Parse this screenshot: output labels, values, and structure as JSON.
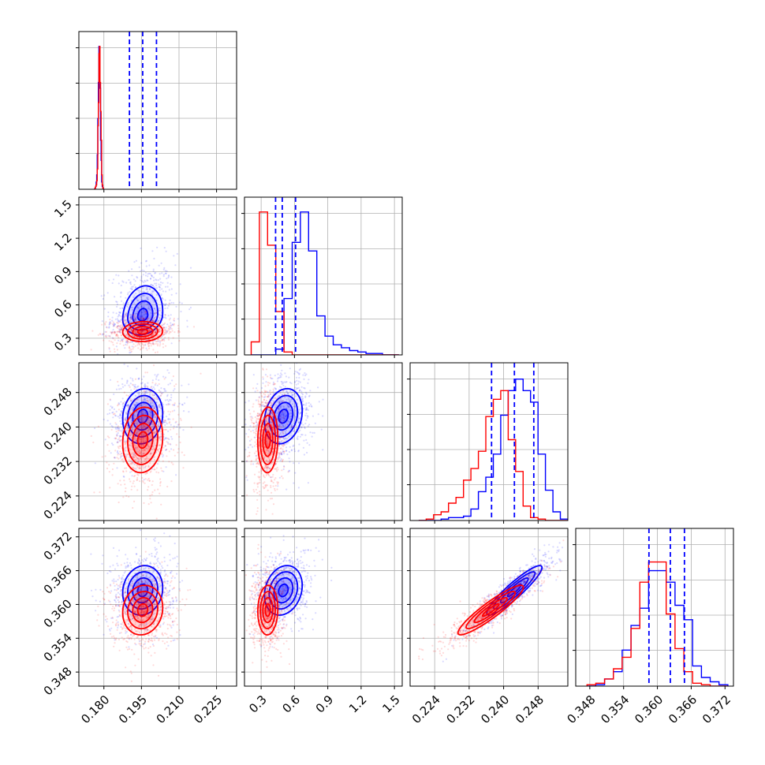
{
  "chart_data": {
    "type": "corner",
    "title": "",
    "n_params": 4,
    "params": [
      {
        "range": [
          0.17,
          0.233
        ],
        "ticks": [
          0.18,
          0.195,
          0.21,
          0.225
        ],
        "tick_labels": [
          "0.180",
          "0.195",
          "0.210",
          "0.225"
        ],
        "grid": true
      },
      {
        "range": [
          0.15,
          1.57
        ],
        "ticks": [
          0.3,
          0.6,
          0.9,
          1.2,
          1.5
        ],
        "tick_labels": [
          "0.3",
          "0.6",
          "0.9",
          "1.2",
          "1.5"
        ],
        "grid": true
      },
      {
        "range": [
          0.2183,
          0.2549
        ],
        "ticks": [
          0.224,
          0.232,
          0.24,
          0.248
        ],
        "tick_labels": [
          "0.224",
          "0.232",
          "0.240",
          "0.248"
        ],
        "grid": true
      },
      {
        "range": [
          0.3455,
          0.3735
        ],
        "ticks": [
          0.348,
          0.354,
          0.36,
          0.366,
          0.372
        ],
        "tick_labels": [
          "0.348",
          "0.354",
          "0.360",
          "0.366",
          "0.372"
        ],
        "grid": true
      }
    ],
    "series": [
      {
        "name": "",
        "color": "#0000ff",
        "mean": [
          0.1955,
          0.5,
          0.2425,
          0.3625
        ],
        "std": [
          0.004,
          0.085,
          0.0032,
          0.0022
        ],
        "corr": [
          [
            1,
            0.15,
            0.1,
            0.1
          ],
          [
            0.15,
            1,
            0.2,
            0.2
          ],
          [
            0.1,
            0.2,
            1,
            0.92
          ],
          [
            0.1,
            0.2,
            0.92,
            1
          ]
        ],
        "quantiles": [
          [
            0.1902,
            0.1955,
            0.201
          ],
          [
            0.43,
            0.49,
            0.61
          ],
          [
            0.2372,
            0.2425,
            0.247
          ],
          [
            0.3585,
            0.3623,
            0.3648
          ]
        ]
      },
      {
        "name": "",
        "color": "#ff0000",
        "mean": [
          0.1955,
          0.36,
          0.237,
          0.359
        ],
        "std": [
          0.004,
          0.045,
          0.0038,
          0.0022
        ],
        "corr": [
          [
            1,
            0.05,
            0.1,
            0.1
          ],
          [
            0.05,
            1,
            0.05,
            0.05
          ],
          [
            0.1,
            0.05,
            1,
            0.92
          ],
          [
            0.1,
            0.05,
            0.92,
            1
          ]
        ]
      }
    ],
    "diag_hist": {
      "blue": [
        [
          0.18,
          0.176,
          0.0,
          0.01,
          0.02,
          0.05,
          0.2,
          0.34,
          0.7,
          0.8,
          0.99,
          0.74,
          0.49,
          0.24,
          0.1,
          0.05,
          0.02,
          0.01,
          0.0,
          0.0
        ],
        [
          0.21,
          1.54,
          0.0,
          0.0,
          0.0,
          0.04,
          0.39,
          0.78,
          0.99,
          0.72,
          0.27,
          0.13,
          0.07,
          0.05,
          0.03,
          0.02,
          0.01,
          0.01,
          0.0,
          0.0
        ],
        [
          0.2203,
          0.2549,
          0.0,
          0.0,
          0.0,
          0.01,
          0.02,
          0.02,
          0.03,
          0.08,
          0.2,
          0.3,
          0.46,
          0.73,
          0.9,
          0.98,
          0.9,
          0.82,
          0.46,
          0.21,
          0.06,
          0.01
        ],
        [
          0.3475,
          0.3725,
          0.0,
          0.01,
          0.05,
          0.1,
          0.25,
          0.42,
          0.54,
          0.8,
          0.8,
          0.72,
          0.56,
          0.46,
          0.14,
          0.06,
          0.03,
          0.01
        ]
      ],
      "red": [
        [
          0.18,
          0.176,
          0.0,
          0.01,
          0.03,
          0.1,
          0.34,
          0.54,
          0.74,
          0.99,
          0.94,
          0.6,
          0.44,
          0.14,
          0.06,
          0.03,
          0.02,
          0.01,
          0.0,
          0.0
        ],
        [
          0.21,
          1.54,
          0.09,
          0.99,
          0.76,
          0.3,
          0.02,
          0.0,
          0.0,
          0.0,
          0.0,
          0.0,
          0.0,
          0.0,
          0.0,
          0.0,
          0.0,
          0.0,
          0.0,
          0.0
        ],
        [
          0.2203,
          0.2549,
          0.0,
          0.01,
          0.04,
          0.06,
          0.12,
          0.16,
          0.28,
          0.36,
          0.48,
          0.72,
          0.84,
          0.9,
          0.56,
          0.34,
          0.1,
          0.02,
          0.01,
          0.0,
          0.0,
          0.0
        ],
        [
          0.3475,
          0.3725,
          0.01,
          0.02,
          0.05,
          0.12,
          0.2,
          0.4,
          0.72,
          0.86,
          0.86,
          0.5,
          0.26,
          0.1,
          0.02,
          0.01,
          0.0,
          0.0
        ]
      ]
    },
    "legend": "none"
  }
}
